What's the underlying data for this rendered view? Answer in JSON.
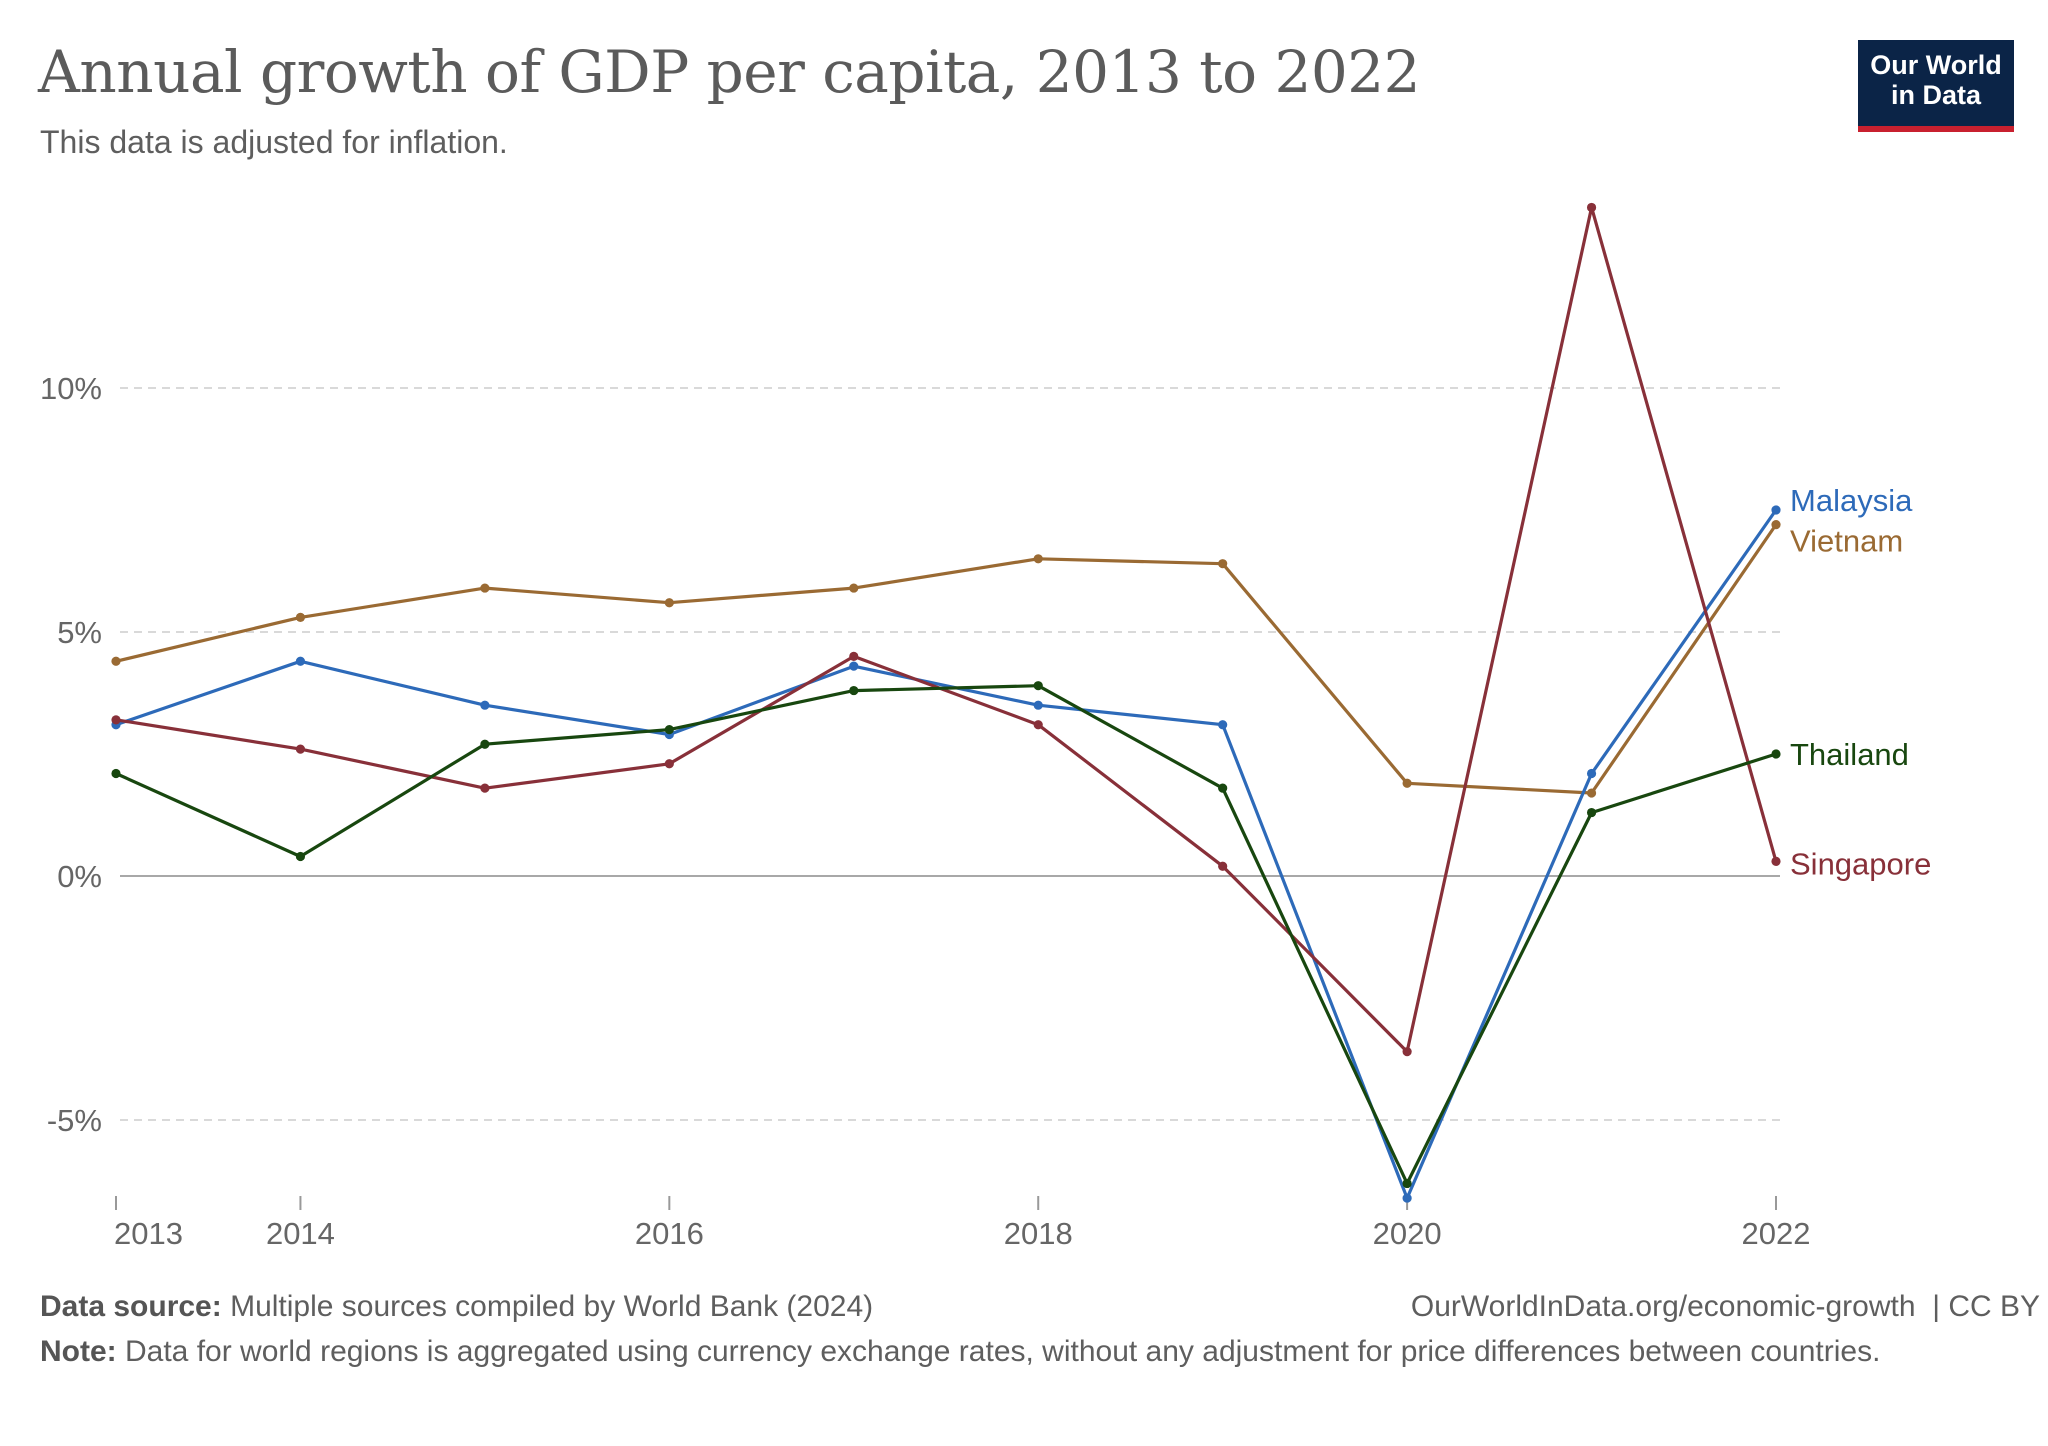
{
  "header": {
    "title": "Annual growth of GDP per capita, 2013 to 2022",
    "subtitle": "This data is adjusted for inflation."
  },
  "logo": {
    "line1": "Our World",
    "line2": "in Data"
  },
  "footer": {
    "source_label": "Data source:",
    "source_text": "Multiple sources compiled by World Bank (2024)",
    "url": "OurWorldInData.org/economic-growth",
    "license": "| CC BY",
    "note_label": "Note:",
    "note_text": "Data for world regions is aggregated using currency exchange rates, without any adjustment for price differences between countries."
  },
  "chart_data": {
    "type": "line",
    "title": "Annual growth of GDP per capita, 2013 to 2022",
    "subtitle": "This data is adjusted for inflation.",
    "x": [
      2013,
      2014,
      2015,
      2016,
      2017,
      2018,
      2019,
      2020,
      2021,
      2022
    ],
    "x_ticks": [
      2013,
      2014,
      2016,
      2018,
      2020,
      2022
    ],
    "y_ticks": [
      -5,
      0,
      5,
      10
    ],
    "y_tick_labels": [
      "-5%",
      "0%",
      "5%",
      "10%"
    ],
    "ylim": [
      -6.6,
      13.7
    ],
    "grid": "horizontal dashed",
    "legend": "right (labels at line ends)",
    "series": [
      {
        "name": "Vietnam",
        "color": "#9a6a33",
        "values": [
          4.4,
          5.3,
          5.9,
          5.6,
          5.9,
          6.5,
          6.4,
          1.9,
          1.7,
          7.2
        ]
      },
      {
        "name": "Malaysia",
        "color": "#2d6ab9",
        "values": [
          3.1,
          4.4,
          3.5,
          2.9,
          4.3,
          3.5,
          3.1,
          -6.6,
          2.1,
          7.5
        ]
      },
      {
        "name": "Singapore",
        "color": "#883039",
        "values": [
          3.2,
          2.6,
          1.8,
          2.3,
          4.5,
          3.1,
          0.2,
          -3.6,
          13.7,
          0.3
        ]
      },
      {
        "name": "Thailand",
        "color": "#18470f",
        "values": [
          2.1,
          0.4,
          2.7,
          3.0,
          3.8,
          3.9,
          1.8,
          -6.3,
          1.3,
          2.5
        ]
      }
    ]
  }
}
